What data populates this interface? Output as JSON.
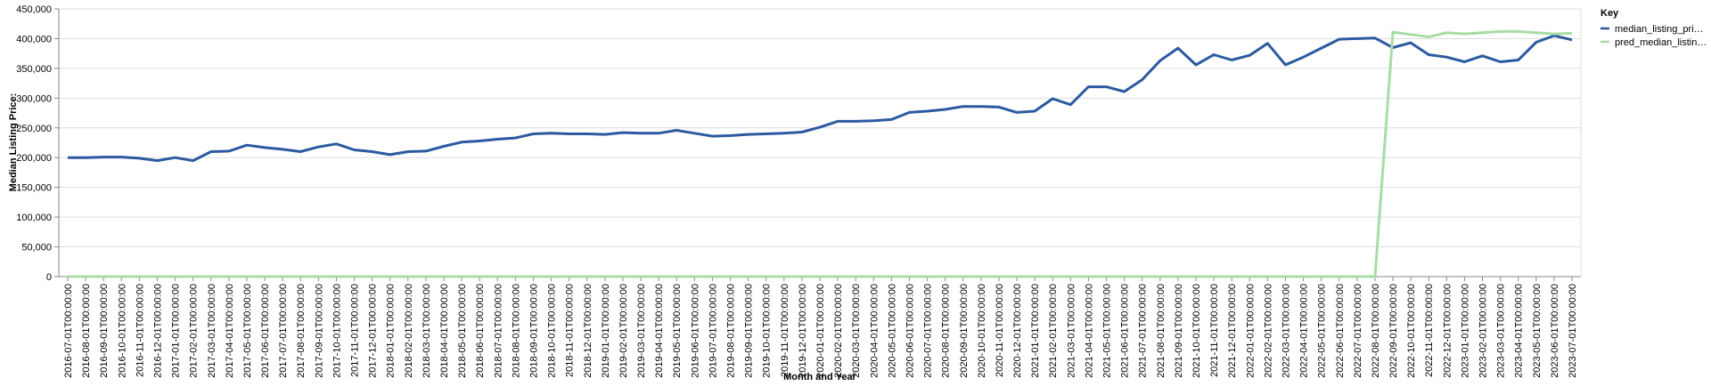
{
  "chart_data": {
    "type": "line",
    "xlabel": "Month and Year",
    "ylabel": "Median Listing Price:",
    "legend_title": "Key",
    "legend": "right",
    "grid": true,
    "categories": [
      "2016-07-01T00:00:00",
      "2016-08-01T00:00:00",
      "2016-09-01T00:00:00",
      "2016-10-01T00:00:00",
      "2016-11-01T00:00:00",
      "2016-12-01T00:00:00",
      "2017-01-01T00:00:00",
      "2017-02-01T00:00:00",
      "2017-03-01T00:00:00",
      "2017-04-01T00:00:00",
      "2017-05-01T00:00:00",
      "2017-06-01T00:00:00",
      "2017-07-01T00:00:00",
      "2017-08-01T00:00:00",
      "2017-09-01T00:00:00",
      "2017-10-01T00:00:00",
      "2017-11-01T00:00:00",
      "2017-12-01T00:00:00",
      "2018-01-01T00:00:00",
      "2018-02-01T00:00:00",
      "2018-03-01T00:00:00",
      "2018-04-01T00:00:00",
      "2018-05-01T00:00:00",
      "2018-06-01T00:00:00",
      "2018-07-01T00:00:00",
      "2018-08-01T00:00:00",
      "2018-09-01T00:00:00",
      "2018-10-01T00:00:00",
      "2018-11-01T00:00:00",
      "2018-12-01T00:00:00",
      "2019-01-01T00:00:00",
      "2019-02-01T00:00:00",
      "2019-03-01T00:00:00",
      "2019-04-01T00:00:00",
      "2019-05-01T00:00:00",
      "2019-06-01T00:00:00",
      "2019-07-01T00:00:00",
      "2019-08-01T00:00:00",
      "2019-09-01T00:00:00",
      "2019-10-01T00:00:00",
      "2019-11-01T00:00:00",
      "2019-12-01T00:00:00",
      "2020-01-01T00:00:00",
      "2020-02-01T00:00:00",
      "2020-03-01T00:00:00",
      "2020-04-01T00:00:00",
      "2020-05-01T00:00:00",
      "2020-06-01T00:00:00",
      "2020-07-01T00:00:00",
      "2020-08-01T00:00:00",
      "2020-09-01T00:00:00",
      "2020-10-01T00:00:00",
      "2020-11-01T00:00:00",
      "2020-12-01T00:00:00",
      "2021-01-01T00:00:00",
      "2021-02-01T00:00:00",
      "2021-03-01T00:00:00",
      "2021-04-01T00:00:00",
      "2021-05-01T00:00:00",
      "2021-06-01T00:00:00",
      "2021-07-01T00:00:00",
      "2021-08-01T00:00:00",
      "2021-09-01T00:00:00",
      "2021-10-01T00:00:00",
      "2021-11-01T00:00:00",
      "2021-12-01T00:00:00",
      "2022-01-01T00:00:00",
      "2022-02-01T00:00:00",
      "2022-03-01T00:00:00",
      "2022-04-01T00:00:00",
      "2022-05-01T00:00:00",
      "2022-06-01T00:00:00",
      "2022-07-01T00:00:00",
      "2022-08-01T00:00:00",
      "2022-09-01T00:00:00",
      "2022-10-01T00:00:00",
      "2022-11-01T00:00:00",
      "2022-12-01T00:00:00",
      "2023-01-01T00:00:00",
      "2023-02-01T00:00:00",
      "2023-03-01T00:00:00",
      "2023-04-01T00:00:00",
      "2023-05-01T00:00:00",
      "2023-06-01T00:00:00",
      "2023-07-01T00:00:00"
    ],
    "series": [
      {
        "name": "median_listing_pri…",
        "color": "#2c5aa0",
        "values": [
          200000,
          200000,
          201000,
          201000,
          199000,
          195000,
          200000,
          195000,
          210000,
          211000,
          221000,
          217000,
          214000,
          210000,
          218000,
          223000,
          213000,
          210000,
          205000,
          210000,
          211000,
          219000,
          226000,
          228000,
          231000,
          233000,
          240000,
          241000,
          240000,
          240000,
          239000,
          242000,
          241000,
          241000,
          246000,
          241000,
          236000,
          237000,
          239000,
          240000,
          241000,
          243000,
          251000,
          261000,
          261000,
          262000,
          264000,
          276000,
          278000,
          281000,
          286000,
          286000,
          285000,
          276000,
          278000,
          299000,
          289000,
          319000,
          319000,
          311000,
          331000,
          363000,
          384000,
          356000,
          373000,
          364000,
          372000,
          392000,
          356000,
          369000,
          384000,
          399000,
          400000,
          401000,
          385000,
          393000,
          373000,
          369000,
          361000,
          371000,
          361000,
          364000,
          394000,
          405000,
          398000
        ]
      },
      {
        "name": "pred_median_listin…",
        "color": "#a8dca4",
        "values": [
          0,
          0,
          0,
          0,
          0,
          0,
          0,
          0,
          0,
          0,
          0,
          0,
          0,
          0,
          0,
          0,
          0,
          0,
          0,
          0,
          0,
          0,
          0,
          0,
          0,
          0,
          0,
          0,
          0,
          0,
          0,
          0,
          0,
          0,
          0,
          0,
          0,
          0,
          0,
          0,
          0,
          0,
          0,
          0,
          0,
          0,
          0,
          0,
          0,
          0,
          0,
          0,
          0,
          0,
          0,
          0,
          0,
          0,
          0,
          0,
          0,
          0,
          0,
          0,
          0,
          0,
          0,
          0,
          0,
          0,
          0,
          0,
          0,
          0,
          411000,
          407000,
          403000,
          410000,
          408000,
          410000,
          412000,
          412000,
          410000,
          408000,
          409000
        ]
      }
    ],
    "ylim": [
      0,
      450000
    ],
    "yticks": [
      0,
      {
        "value": 50000,
        "label": "50,000"
      },
      {
        "value": 100000,
        "label": "100,000"
      },
      {
        "value": 150000,
        "label": "150,000"
      },
      {
        "value": 200000,
        "label": "200,000"
      },
      {
        "value": 250000,
        "label": "250,000"
      },
      {
        "value": 300000,
        "label": "300,000"
      },
      {
        "value": 350000,
        "label": "350,000"
      },
      {
        "value": 400000,
        "label": "400,000"
      },
      {
        "value": 450000,
        "label": "450,000"
      }
    ]
  }
}
